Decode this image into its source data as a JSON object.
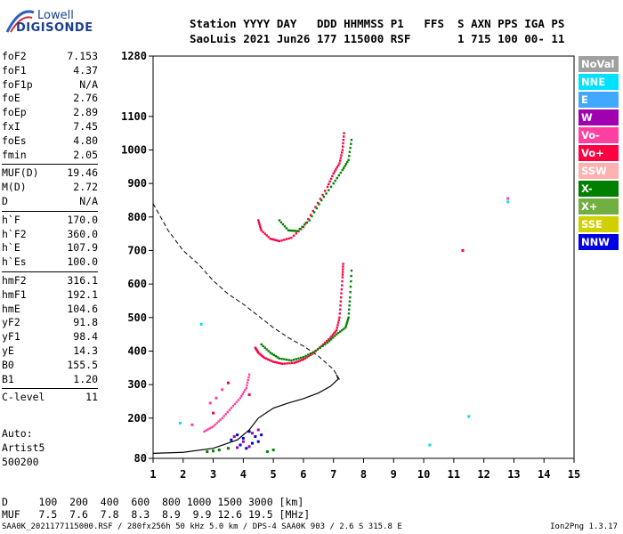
{
  "logo": {
    "line1": "Lowell",
    "line2": "DIGISONDE"
  },
  "header": {
    "line1": "Station YYYY DAY   DDD HHMMSS P1   FFS  S AXN PPS IGA PS",
    "line2": "SaoLuis 2021 Jun26 177 115000 RSF       1 715 100 00- 11"
  },
  "params": [
    {
      "k": "foF2",
      "v": "7.153"
    },
    {
      "k": "foF1",
      "v": "4.37"
    },
    {
      "k": "foF1p",
      "v": "N/A"
    },
    {
      "k": "foE",
      "v": "2.76"
    },
    {
      "k": "foEp",
      "v": "2.89"
    },
    {
      "k": "fxI",
      "v": "7.45"
    },
    {
      "k": "foEs",
      "v": "4.80"
    },
    {
      "k": "fmin",
      "v": "2.05"
    },
    {
      "k": "MUF(D)",
      "v": "19.46"
    },
    {
      "k": "M(D)",
      "v": "2.72"
    },
    {
      "k": "D",
      "v": "N/A"
    },
    {
      "k": "h`F",
      "v": "170.0"
    },
    {
      "k": "h`F2",
      "v": "360.0"
    },
    {
      "k": "h`E",
      "v": "107.9"
    },
    {
      "k": "h`Es",
      "v": "100.0"
    },
    {
      "k": "hmF2",
      "v": "316.1"
    },
    {
      "k": "hmF1",
      "v": "192.1"
    },
    {
      "k": "hmE",
      "v": "104.6"
    },
    {
      "k": "yF2",
      "v": "91.8"
    },
    {
      "k": "yF1",
      "v": "98.4"
    },
    {
      "k": "yE",
      "v": "14.3"
    },
    {
      "k": "B0",
      "v": "155.5"
    },
    {
      "k": "B1",
      "v": "1.20"
    },
    {
      "k": "C-level",
      "v": "11"
    }
  ],
  "auto": {
    "line1": "Auto:",
    "line2": "Artist5",
    "line3": "500200"
  },
  "legend": [
    {
      "label": "NoVal",
      "color": "#a0a0a0"
    },
    {
      "label": "NNE",
      "color": "#00e0ff"
    },
    {
      "label": "E",
      "color": "#40a8ff"
    },
    {
      "label": "W",
      "color": "#a000b0"
    },
    {
      "label": "Vo-",
      "color": "#ff40a0"
    },
    {
      "label": "Vo+",
      "color": "#ff0040"
    },
    {
      "label": "SSW",
      "color": "#ffb0b0"
    },
    {
      "label": "X-",
      "color": "#008000"
    },
    {
      "label": "X+",
      "color": "#70b040"
    },
    {
      "label": "SSE",
      "color": "#d0d000"
    },
    {
      "label": "NNW",
      "color": "#0000e0"
    }
  ],
  "muf_table": {
    "d_line": "D     100  200  400  600  800 1000 1500 3000 [km]",
    "muf_line": "MUF   7.5  7.6  7.8  8.3  8.9  9.9 12.6 19.5 [MHz]"
  },
  "footer": {
    "text": "SAA0K_2021177115000.RSF / 280fx256h 50 kHz 5.0 km / DPS-4 SAA0K 903 / 2.6 S 315.8 E",
    "version": "Ion2Png 1.3.17"
  },
  "chart_data": {
    "type": "scatter",
    "title": "",
    "xlabel": "",
    "ylabel": "",
    "x_unit": "MHz",
    "y_unit": "km",
    "xlim": [
      1,
      15
    ],
    "ylim": [
      80,
      1280
    ],
    "x_ticks": [
      1,
      2,
      3,
      4,
      5,
      6,
      7,
      8,
      9,
      10,
      11,
      12,
      13,
      14,
      15
    ],
    "y_ticks": [
      80,
      200,
      300,
      400,
      500,
      600,
      700,
      800,
      900,
      1000,
      1100,
      1280
    ],
    "traces": [
      {
        "name": "Vo+",
        "color": "#ff0040",
        "points": [
          [
            4.4,
            410
          ],
          [
            4.5,
            395
          ],
          [
            4.7,
            380
          ],
          [
            5.0,
            368
          ],
          [
            5.3,
            362
          ],
          [
            5.7,
            365
          ],
          [
            6.0,
            375
          ],
          [
            6.3,
            392
          ],
          [
            6.6,
            415
          ],
          [
            6.9,
            440
          ],
          [
            7.1,
            462
          ],
          [
            7.2,
            500
          ],
          [
            7.25,
            560
          ],
          [
            7.3,
            620
          ],
          [
            7.32,
            660
          ]
        ]
      },
      {
        "name": "X-",
        "color": "#008000",
        "points": [
          [
            4.6,
            420
          ],
          [
            4.9,
            395
          ],
          [
            5.2,
            378
          ],
          [
            5.6,
            372
          ],
          [
            6.0,
            382
          ],
          [
            6.4,
            400
          ],
          [
            6.8,
            425
          ],
          [
            7.1,
            450
          ],
          [
            7.4,
            470
          ],
          [
            7.5,
            500
          ],
          [
            7.55,
            560
          ],
          [
            7.6,
            640
          ]
        ]
      },
      {
        "name": "Vo+ (2F)",
        "color": "#ff0040",
        "points": [
          [
            4.5,
            790
          ],
          [
            4.6,
            760
          ],
          [
            4.9,
            735
          ],
          [
            5.2,
            728
          ],
          [
            5.6,
            738
          ],
          [
            6.0,
            770
          ],
          [
            6.4,
            830
          ],
          [
            6.8,
            890
          ],
          [
            7.0,
            930
          ],
          [
            7.2,
            960
          ],
          [
            7.3,
            1000
          ],
          [
            7.35,
            1050
          ]
        ]
      },
      {
        "name": "X- (2F)",
        "color": "#008000",
        "points": [
          [
            5.2,
            790
          ],
          [
            5.5,
            760
          ],
          [
            5.8,
            758
          ],
          [
            6.2,
            790
          ],
          [
            6.6,
            850
          ],
          [
            7.0,
            900
          ],
          [
            7.3,
            940
          ],
          [
            7.5,
            970
          ],
          [
            7.6,
            1030
          ]
        ]
      },
      {
        "name": "Vo- (Es/F1)",
        "color": "#ff40a0",
        "points": [
          [
            2.7,
            160
          ],
          [
            3.0,
            175
          ],
          [
            3.3,
            200
          ],
          [
            3.6,
            230
          ],
          [
            3.9,
            260
          ],
          [
            4.1,
            290
          ],
          [
            4.2,
            330
          ]
        ]
      }
    ],
    "scatter_blobs": [
      {
        "color": "#0000e0",
        "points": [
          [
            3.6,
            135
          ],
          [
            3.8,
            150
          ],
          [
            4.0,
            140
          ],
          [
            4.2,
            160
          ],
          [
            4.4,
            145
          ],
          [
            4.5,
            130
          ],
          [
            3.9,
            120
          ],
          [
            4.3,
            125
          ],
          [
            4.1,
            110
          ],
          [
            4.6,
            150
          ]
        ]
      },
      {
        "color": "#a000b0",
        "points": [
          [
            3.7,
            145
          ],
          [
            4.0,
            130
          ],
          [
            4.3,
            155
          ],
          [
            4.5,
            165
          ],
          [
            4.2,
            115
          ],
          [
            3.8,
            112
          ]
        ]
      },
      {
        "color": "#008000",
        "points": [
          [
            2.8,
            100
          ],
          [
            3.2,
            105
          ],
          [
            3.5,
            110
          ],
          [
            4.8,
            100
          ],
          [
            5.0,
            105
          ],
          [
            3.0,
            102
          ]
        ]
      },
      {
        "color": "#00e0ff",
        "points": [
          [
            1.9,
            185
          ],
          [
            2.6,
            480
          ],
          [
            12.8,
            845
          ],
          [
            10.2,
            120
          ],
          [
            11.5,
            205
          ]
        ]
      },
      {
        "color": "#ff40a0",
        "points": [
          [
            2.9,
            245
          ],
          [
            3.1,
            260
          ],
          [
            3.3,
            285
          ],
          [
            2.3,
            180
          ],
          [
            12.8,
            855
          ]
        ]
      },
      {
        "color": "#ff0040",
        "points": [
          [
            3.5,
            305
          ],
          [
            4.2,
            270
          ],
          [
            3.0,
            215
          ],
          [
            11.3,
            700
          ]
        ]
      }
    ],
    "profile_line": {
      "name": "profile",
      "color": "#000000",
      "points": [
        [
          1.0,
          95
        ],
        [
          2.0,
          98
        ],
        [
          3.0,
          110
        ],
        [
          3.8,
          135
        ],
        [
          4.2,
          165
        ],
        [
          4.5,
          200
        ],
        [
          5.0,
          230
        ],
        [
          5.5,
          245
        ],
        [
          6.0,
          258
        ],
        [
          6.5,
          275
        ],
        [
          6.9,
          295
        ],
        [
          7.153,
          316
        ],
        [
          7.1,
          330
        ]
      ]
    },
    "dashed_line": {
      "name": "",
      "color": "#000000",
      "points": [
        [
          1.0,
          840
        ],
        [
          1.5,
          760
        ],
        [
          2.0,
          700
        ],
        [
          2.5,
          660
        ],
        [
          3.0,
          610
        ],
        [
          3.5,
          570
        ],
        [
          4.0,
          540
        ],
        [
          4.5,
          505
        ],
        [
          5.0,
          470
        ],
        [
          5.5,
          440
        ],
        [
          6.0,
          415
        ],
        [
          6.5,
          385
        ],
        [
          7.0,
          345
        ],
        [
          7.2,
          315
        ]
      ]
    }
  }
}
